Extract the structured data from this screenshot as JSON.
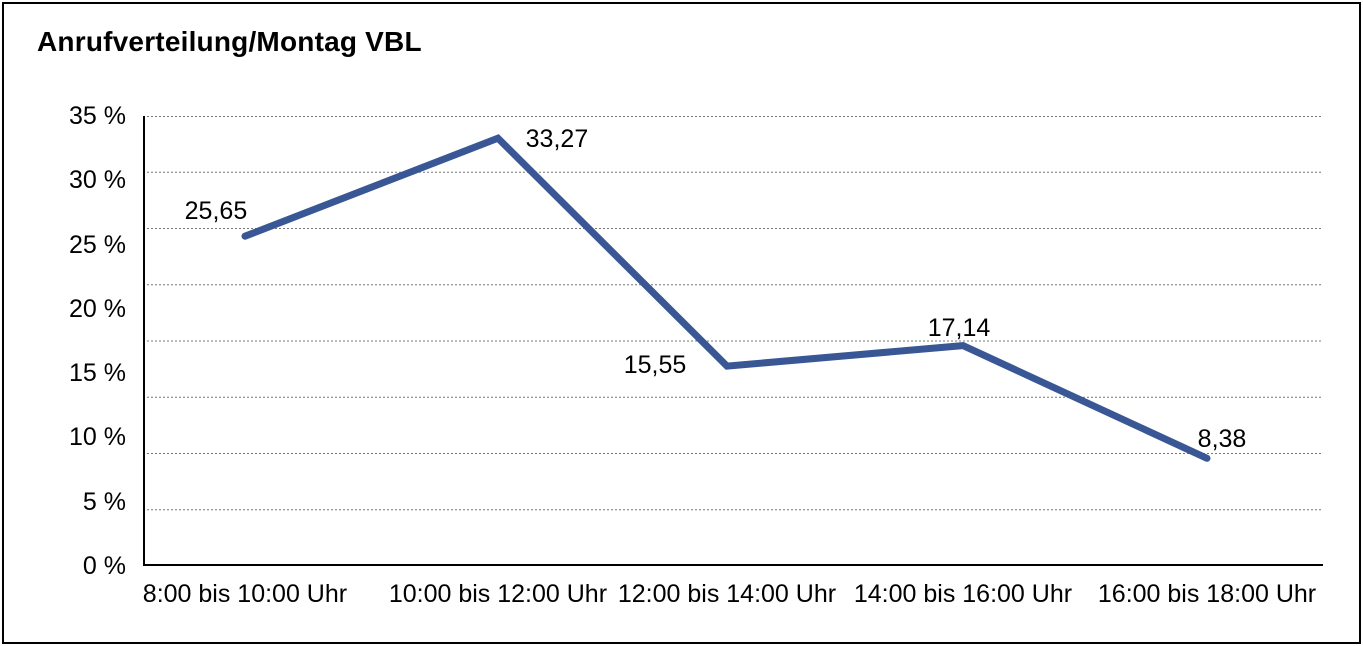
{
  "title": "Anrufverteilung/Montag VBL",
  "chart_data": {
    "type": "line",
    "title": "Anrufverteilung/Montag VBL",
    "categories": [
      "8:00 bis 10:00 Uhr",
      "10:00 bis 12:00 Uhr",
      "12:00 bis 14:00 Uhr",
      "14:00 bis 16:00 Uhr",
      "16:00 bis 18:00 Uhr"
    ],
    "values": [
      25.65,
      33.27,
      15.55,
      17.14,
      8.38
    ],
    "point_labels": [
      "25,65",
      "33,27",
      "15,55",
      "17,14",
      "8,38"
    ],
    "xlabel": "",
    "ylabel": "",
    "ylim": [
      0,
      35
    ],
    "yticks": {
      "values": [
        35,
        30,
        25,
        20,
        15,
        10,
        5,
        0
      ],
      "labels": [
        "35 %",
        "30 %",
        "25 %",
        "20 %",
        "15 %",
        "10 %",
        "5 %",
        "0 %"
      ]
    },
    "grid": "horizontal dotted, 8 equal bands",
    "legend": "none",
    "colors": {
      "line": "#3A5795",
      "grid": "#777777",
      "axis": "#000000",
      "text": "#000000",
      "background": "#FFFFFF"
    }
  }
}
